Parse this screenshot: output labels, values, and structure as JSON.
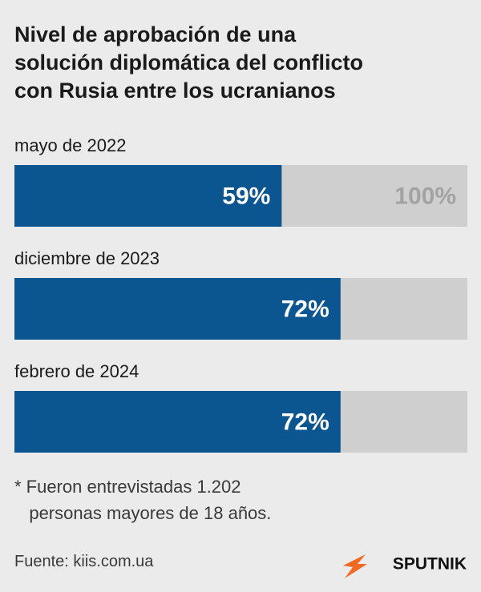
{
  "chart_data": {
    "type": "bar",
    "title": "Nivel de aprobación de una\nsolución diplomática del conflicto\ncon Rusia entre los ucranianos",
    "categories": [
      "mayo de 2022",
      "diciembre de 2023",
      "febrero de 2024"
    ],
    "values": [
      59,
      72,
      72
    ],
    "value_labels": [
      "59%",
      "72%",
      "72%"
    ],
    "color": "#0b5591",
    "track_color": "#cfcfcf",
    "xlim": [
      0,
      100
    ],
    "xticks": [
      {
        "value": 100,
        "label": "100%"
      }
    ],
    "note": "* Fueron entrevistadas 1.202\n   personas mayores de 18 años.",
    "source": "Fuente: kiis.com.ua",
    "brand": "SPUTNIK"
  }
}
